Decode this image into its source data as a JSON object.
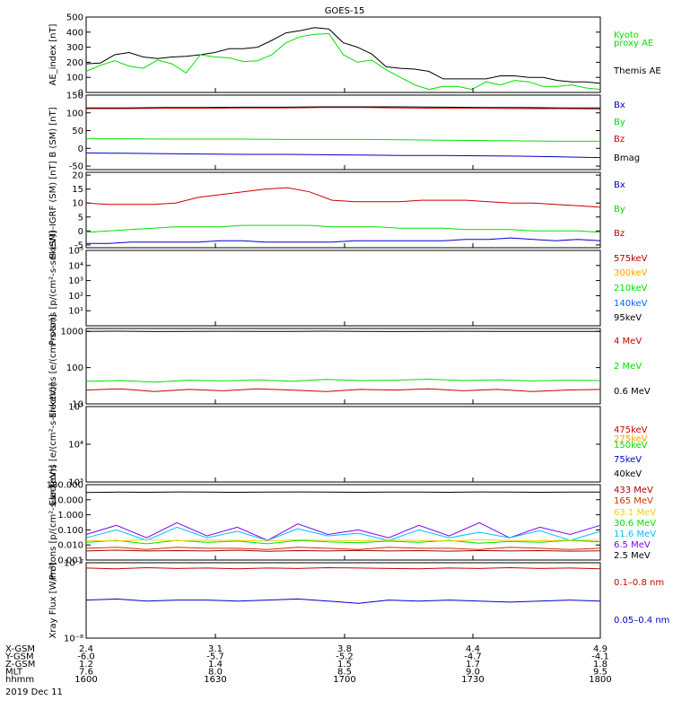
{
  "title": "GOES-15",
  "colors": {
    "black": "#000000",
    "green": "#00e000",
    "blue": "#0000cc",
    "red": "#cc0000",
    "orange": "#ffa500",
    "yellow": "#e8e800",
    "cyan": "#00bfff",
    "purple": "#8000ff",
    "darkred": "#b00000"
  },
  "chart_data": [
    {
      "type": "line",
      "ylabel": "AE_index [nT]",
      "ylim": [
        0,
        500
      ],
      "yticks": [
        [
          "0",
          0
        ],
        [
          "100",
          100
        ],
        [
          "200",
          200
        ],
        [
          "300",
          300
        ],
        [
          "400",
          400
        ],
        [
          "500",
          500
        ]
      ],
      "legend": [
        {
          "name": "Kyoto",
          "color": "#00e000"
        },
        {
          "name": "proxy AE",
          "color": "#00e000"
        },
        {
          "name": "Themis AE",
          "color": "#000000"
        }
      ],
      "series": [
        {
          "name": "Themis AE",
          "color": "#000000",
          "values": [
            190,
            195,
            250,
            265,
            235,
            225,
            235,
            240,
            250,
            265,
            290,
            290,
            300,
            345,
            395,
            410,
            430,
            420,
            330,
            300,
            255,
            170,
            160,
            155,
            140,
            90,
            90,
            90,
            90,
            110,
            110,
            100,
            100,
            80,
            70,
            70,
            60
          ]
        },
        {
          "name": "proxy AE",
          "color": "#00e000",
          "values": [
            140,
            180,
            210,
            175,
            160,
            215,
            190,
            130,
            250,
            235,
            230,
            205,
            210,
            250,
            330,
            370,
            385,
            390,
            250,
            200,
            215,
            150,
            100,
            50,
            20,
            40,
            40,
            20,
            70,
            50,
            80,
            70,
            40,
            40,
            50,
            30,
            20
          ]
        }
      ]
    },
    {
      "type": "line",
      "ylabel": "B (SM) [nT]",
      "ylim": [
        -60,
        150
      ],
      "yticks": [
        [
          "-50",
          -50
        ],
        [
          "0",
          0
        ],
        [
          "50",
          50
        ],
        [
          "100",
          100
        ],
        [
          "150",
          150
        ]
      ],
      "legend": [
        {
          "name": "Bx",
          "color": "#0000cc"
        },
        {
          "name": "By",
          "color": "#00e000"
        },
        {
          "name": "Bz",
          "color": "#cc0000"
        },
        {
          "name": "Bmag",
          "color": "#000000"
        }
      ],
      "series": [
        {
          "name": "Bmag",
          "color": "#000000",
          "values": [
            114,
            114,
            115,
            115,
            116,
            116,
            117,
            117,
            117,
            116,
            115,
            115,
            114,
            114
          ]
        },
        {
          "name": "Bz",
          "color": "#cc0000",
          "values": [
            112,
            112,
            113,
            113,
            114,
            114,
            115,
            115,
            114,
            113,
            113,
            112,
            112,
            111
          ]
        },
        {
          "name": "By",
          "color": "#00e000",
          "values": [
            27,
            27,
            26,
            26,
            26,
            25,
            25,
            25,
            24,
            23,
            22,
            21,
            20,
            20
          ]
        },
        {
          "name": "Bx",
          "color": "#0000cc",
          "values": [
            -13,
            -14,
            -15,
            -16,
            -17,
            -17,
            -18,
            -19,
            -20,
            -20,
            -21,
            -22,
            -24,
            -26
          ]
        }
      ]
    },
    {
      "type": "line",
      "ylabel": "B (SM)-IGRF (SM) [nT]",
      "ylim": [
        -6,
        21
      ],
      "yticks": [
        [
          "-5",
          -5
        ],
        [
          "0",
          0
        ],
        [
          "5",
          5
        ],
        [
          "10",
          10
        ],
        [
          "15",
          15
        ],
        [
          "20",
          20
        ]
      ],
      "legend": [
        {
          "name": "Bx",
          "color": "#0000cc"
        },
        {
          "name": "By",
          "color": "#00e000"
        },
        {
          "name": "Bz",
          "color": "#cc0000"
        }
      ],
      "series": [
        {
          "name": "Bz",
          "color": "#cc0000",
          "values": [
            10,
            9.5,
            9.5,
            9.5,
            10,
            12,
            13,
            14,
            15,
            15.5,
            14,
            11,
            10.5,
            10.5,
            10.5,
            11,
            11,
            11,
            10.5,
            10,
            10,
            9.5,
            9,
            8.5
          ]
        },
        {
          "name": "By",
          "color": "#00e000",
          "values": [
            -0.5,
            0,
            0.5,
            1,
            1.5,
            1.5,
            1.5,
            2,
            2,
            2,
            2,
            1.5,
            1.5,
            1.5,
            1,
            1,
            1,
            0.5,
            0.5,
            0.5,
            0,
            0,
            0,
            -0.5
          ]
        },
        {
          "name": "Bx",
          "color": "#0000cc",
          "values": [
            -4.5,
            -4.5,
            -4,
            -4,
            -4,
            -4,
            -3.5,
            -3.5,
            -4,
            -4,
            -4,
            -4,
            -3.5,
            -3.5,
            -3.5,
            -3.5,
            -3.5,
            -3,
            -3,
            -2.5,
            -3,
            -3.5,
            -3,
            -3.5
          ]
        }
      ]
    },
    {
      "type": "line",
      "log": true,
      "ylabel": "Protons [p/(cm²-s-sr-keV)]",
      "ylim": [
        1,
        100000
      ],
      "yticks": [
        [
          "10¹",
          10
        ],
        [
          "10²",
          100
        ],
        [
          "10³",
          1000
        ],
        [
          "10⁴",
          10000
        ],
        [
          "10⁵",
          100000
        ]
      ],
      "legend": [
        {
          "name": "575keV",
          "color": "#b00000"
        },
        {
          "name": "300keV",
          "color": "#ffa500"
        },
        {
          "name": "210keV",
          "color": "#00e000"
        },
        {
          "name": "140keV",
          "color": "#0066ff"
        },
        {
          "name": "95keV",
          "color": "#000000"
        }
      ],
      "series": []
    },
    {
      "type": "line",
      "log": true,
      "ylabel": "Electrons [e/(cm²-s-sr)]",
      "ylim": [
        10,
        1200
      ],
      "yticks": [
        [
          "10",
          10
        ],
        [
          "100",
          100
        ],
        [
          "1000",
          1000
        ]
      ],
      "legend": [
        {
          "name": "4 MeV",
          "color": "#cc0000"
        },
        {
          "name": "2 MeV",
          "color": "#00e000"
        },
        {
          "name": "0.6 MeV",
          "color": "#000000"
        }
      ],
      "series": [
        {
          "name": "0.6 MeV",
          "color": "#000000",
          "values": [
            1000,
            1010,
            990,
            1000,
            1005,
            995,
            1000,
            1010,
            1000,
            990,
            1000,
            1005,
            1000,
            995,
            1000,
            1000
          ]
        },
        {
          "name": "2 MeV",
          "color": "#00e000",
          "values": [
            42,
            44,
            40,
            45,
            43,
            46,
            42,
            47,
            44,
            45,
            48,
            44,
            46,
            43,
            45,
            44
          ]
        },
        {
          "name": "4 MeV",
          "color": "#cc0000",
          "values": [
            24,
            26,
            22,
            25,
            23,
            26,
            24,
            22,
            25,
            24,
            26,
            23,
            25,
            22,
            24,
            25
          ]
        }
      ]
    },
    {
      "type": "line",
      "log": true,
      "ylabel": "Electrons [e/(cm²-s-sr-keV)]",
      "ylim": [
        1000,
        100000
      ],
      "yticks": [
        [
          "10³",
          1000
        ],
        [
          "10⁴",
          10000
        ],
        [
          "10⁵",
          100000
        ]
      ],
      "legend": [
        {
          "name": "475keV",
          "color": "#cc0000"
        },
        {
          "name": "275keV",
          "color": "#ffa500"
        },
        {
          "name": "150keV",
          "color": "#00e000"
        },
        {
          "name": "75keV",
          "color": "#0000cc"
        },
        {
          "name": "40keV",
          "color": "#000000"
        }
      ],
      "series": []
    },
    {
      "type": "line",
      "log": true,
      "ylabel": "Protons [p/(cm²-s-sr-keV)]",
      "ylim": [
        0.001,
        100
      ],
      "yticks": [
        [
          "0.001",
          0.001
        ],
        [
          "0.010",
          0.01
        ],
        [
          "0.100",
          0.1
        ],
        [
          "1.000",
          1
        ],
        [
          "10.000",
          10
        ],
        [
          "100.000",
          100
        ]
      ],
      "legend": [
        {
          "name": "433 MeV",
          "color": "#b00000"
        },
        {
          "name": "165 MeV",
          "color": "#cc3300"
        },
        {
          "name": "63.1 MeV",
          "color": "#ffcc00"
        },
        {
          "name": "30.6 MeV",
          "color": "#00e000"
        },
        {
          "name": "11.6 MeV",
          "color": "#00bfff"
        },
        {
          "name": "6.5 MeV",
          "color": "#8000ff"
        },
        {
          "name": "2.5 MeV",
          "color": "#000000"
        }
      ],
      "series": [
        {
          "name": "2.5 MeV",
          "color": "#000000",
          "values": [
            30,
            32,
            31,
            33,
            32,
            31,
            32,
            33,
            32,
            31,
            32,
            32,
            31,
            33,
            32,
            31,
            32,
            32
          ]
        },
        {
          "name": "6.5 MeV",
          "color": "#8000ff",
          "values": [
            0.05,
            0.2,
            0.03,
            0.3,
            0.04,
            0.15,
            0.02,
            0.25,
            0.05,
            0.1,
            0.03,
            0.2,
            0.04,
            0.3,
            0.03,
            0.15,
            0.05,
            0.2
          ]
        },
        {
          "name": "11.6 MeV",
          "color": "#00bfff",
          "values": [
            0.03,
            0.1,
            0.02,
            0.15,
            0.03,
            0.08,
            0.02,
            0.12,
            0.04,
            0.06,
            0.02,
            0.1,
            0.03,
            0.07,
            0.03,
            0.09,
            0.02,
            0.08
          ]
        },
        {
          "name": "30.6 MeV",
          "color": "#00e000",
          "values": [
            0.015,
            0.02,
            0.012,
            0.02,
            0.015,
            0.018,
            0.012,
            0.02,
            0.016,
            0.014,
            0.018,
            0.015,
            0.02,
            0.013,
            0.017,
            0.015,
            0.02,
            0.016
          ]
        },
        {
          "name": "63.1 MeV",
          "color": "#ffcc00",
          "values": [
            0.02,
            0.018,
            0.022,
            0.019,
            0.021,
            0.02,
            0.018,
            0.022,
            0.02,
            0.019,
            0.021,
            0.02,
            0.018,
            0.022,
            0.02,
            0.019,
            0.021,
            0.02
          ]
        },
        {
          "name": "165 MeV",
          "color": "#cc3300",
          "values": [
            0.006,
            0.007,
            0.005,
            0.007,
            0.006,
            0.006,
            0.005,
            0.007,
            0.006,
            0.005,
            0.007,
            0.006,
            0.006,
            0.005,
            0.007,
            0.006,
            0.005,
            0.006
          ]
        },
        {
          "name": "433 MeV",
          "color": "#b00000",
          "values": [
            0.004,
            0.0045,
            0.004,
            0.0042,
            0.004,
            0.0045,
            0.0038,
            0.0042,
            0.004,
            0.0044,
            0.004,
            0.0042,
            0.0039,
            0.0043,
            0.004,
            0.0042,
            0.0039,
            0.0041
          ]
        }
      ]
    },
    {
      "type": "line",
      "log": true,
      "ylabel": "Xray Flux [W/m²]",
      "ylim": [
        1e-08,
        1e-07
      ],
      "yticks": [
        [
          "10⁻⁸",
          1e-08
        ],
        [
          "10⁻⁷",
          1e-07
        ]
      ],
      "legend": [
        {
          "name": "0.1–0.8 nm",
          "color": "#cc0000"
        },
        {
          "name": "0.05–0.4 nm",
          "color": "#0000cc"
        }
      ],
      "series": [
        {
          "name": "0.1-0.8 nm",
          "color": "#cc0000",
          "values": [
            8.5e-08,
            8.3e-08,
            8.6e-08,
            8.4e-08,
            8.5e-08,
            8.3e-08,
            8.5e-08,
            8.4e-08,
            8.6e-08,
            8.5e-08,
            8.4e-08,
            8.3e-08,
            8.5e-08,
            8.4e-08,
            8.6e-08,
            8.4e-08,
            8.5e-08,
            8.3e-08
          ]
        },
        {
          "name": "0.05-0.4 nm",
          "color": "#0000cc",
          "values": [
            3.2e-08,
            3.3e-08,
            3.1e-08,
            3.2e-08,
            3.2e-08,
            3.1e-08,
            3.2e-08,
            3.3e-08,
            3.1e-08,
            2.9e-08,
            3.2e-08,
            3.1e-08,
            3.2e-08,
            3.1e-08,
            3e-08,
            3.1e-08,
            3.2e-08,
            3.1e-08
          ]
        }
      ]
    }
  ],
  "xaxis": {
    "rows": [
      {
        "label": "X-GSM",
        "values": [
          "2.4",
          "3.1",
          "3.8",
          "4.4",
          "4.9"
        ]
      },
      {
        "label": "Y-GSM",
        "values": [
          "-6.0",
          "-5.7",
          "-5.2",
          "-4.7",
          "-4.1"
        ]
      },
      {
        "label": "Z-GSM",
        "values": [
          "1.2",
          "1.4",
          "1.5",
          "1.7",
          "1.8"
        ]
      },
      {
        "label": "MLT",
        "values": [
          "7.6",
          "8.0",
          "8.5",
          "9.0",
          "9.5"
        ]
      },
      {
        "label": "hhmm",
        "values": [
          "1600",
          "1630",
          "1700",
          "1730",
          "1800"
        ]
      }
    ],
    "date": "2019 Dec 11"
  }
}
